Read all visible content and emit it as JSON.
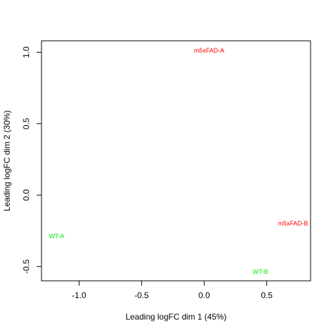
{
  "chart_data": {
    "type": "scatter",
    "title": "",
    "xlabel": "Leading logFC dim 1 (45%)",
    "ylabel": "Leading logFC dim 2 (30%)",
    "xlim": [
      -1.3,
      0.85
    ],
    "ylim": [
      -0.6,
      1.08
    ],
    "xticks": [
      -1.0,
      -0.5,
      0.0,
      0.5
    ],
    "xtick_labels": [
      "-1.0",
      "-0.5",
      "0.0",
      "0.5"
    ],
    "yticks": [
      -0.5,
      0.0,
      0.5,
      1.0
    ],
    "ytick_labels": [
      "-0.5",
      "0.0",
      "0.5",
      "1.0"
    ],
    "grid": false,
    "points": [
      {
        "label": "m5xFAD-A",
        "x": 0.04,
        "y": 1.01,
        "color": "#ff0000"
      },
      {
        "label": "m5xFAD-B",
        "x": 0.71,
        "y": -0.2,
        "color": "#ff0000"
      },
      {
        "label": "WT-A",
        "x": -1.18,
        "y": -0.29,
        "color": "#00ee00"
      },
      {
        "label": "WT-B",
        "x": 0.45,
        "y": -0.54,
        "color": "#00ee00"
      }
    ]
  }
}
